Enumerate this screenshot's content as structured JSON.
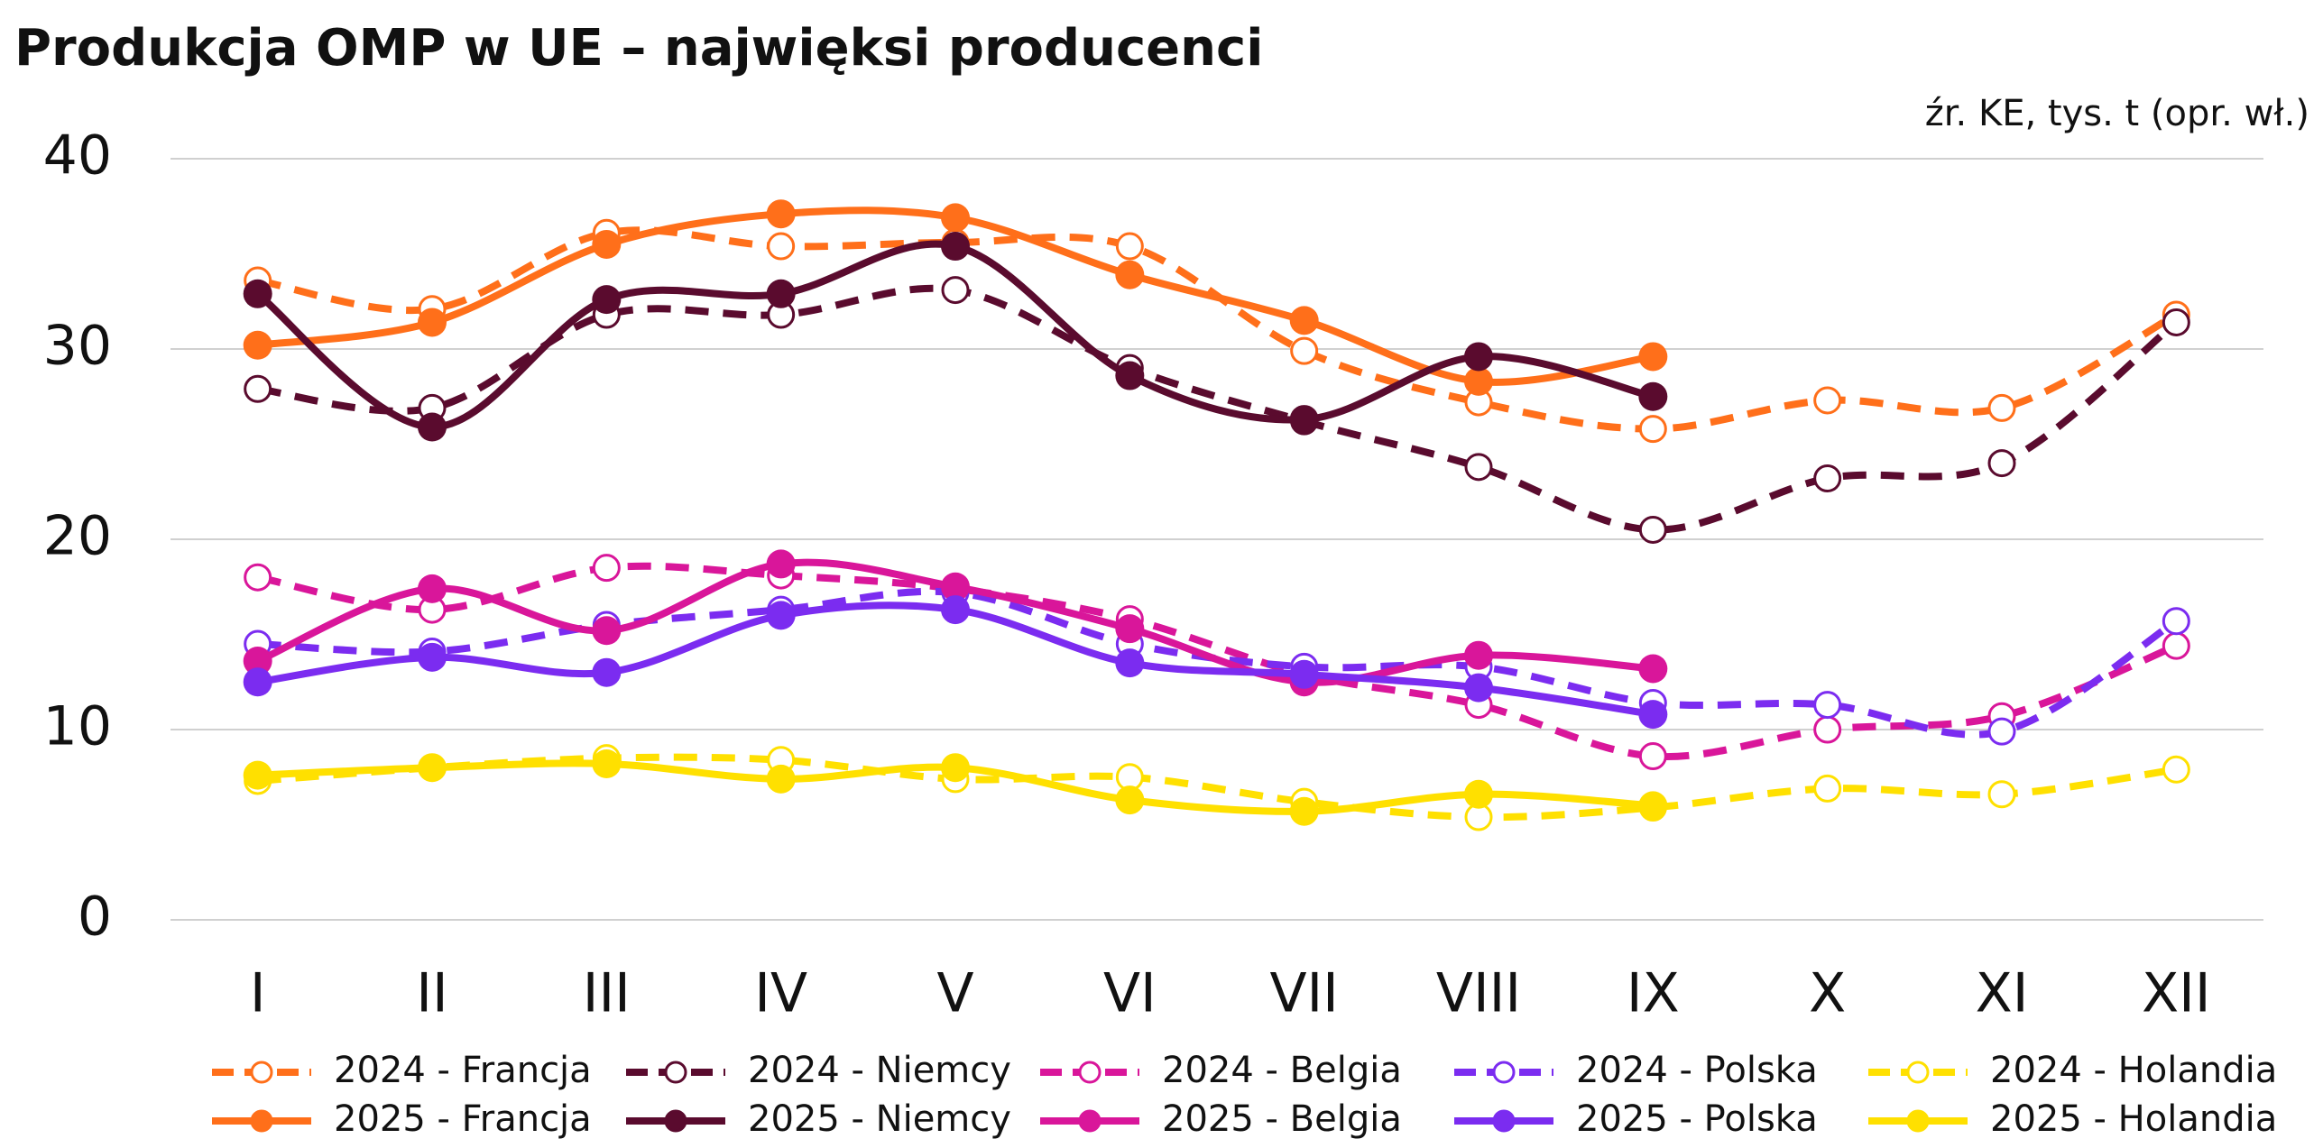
{
  "chart_data": {
    "type": "line",
    "title": "Produkcja OMP w UE – najwięksi producenci",
    "subtitle": "źr. KE, tys. t (opr. wł.)",
    "categories": [
      "I",
      "II",
      "III",
      "IV",
      "V",
      "VI",
      "VII",
      "VIII",
      "IX",
      "X",
      "XI",
      "XII"
    ],
    "ylim": [
      0,
      40
    ],
    "yticks": [
      0,
      10,
      20,
      30,
      40
    ],
    "grid": true,
    "legend": "bottom",
    "series": [
      {
        "name": "2024 - Francja",
        "color": "#ff6f1a",
        "line_style": "dashed",
        "marker": "hollow",
        "values": [
          33.6,
          32.1,
          36.1,
          35.4,
          35.6,
          35.4,
          29.9,
          27.2,
          25.8,
          27.3,
          26.9,
          31.8
        ]
      },
      {
        "name": "2024 - Niemcy",
        "color": "#5a0b2e",
        "line_style": "dashed",
        "marker": "hollow",
        "values": [
          27.9,
          26.9,
          31.8,
          31.8,
          33.1,
          29.0,
          26.2,
          23.8,
          20.5,
          23.2,
          24.0,
          31.4
        ]
      },
      {
        "name": "2024 - Belgia",
        "color": "#d9169a",
        "line_style": "dashed",
        "marker": "hollow",
        "values": [
          18.0,
          16.3,
          18.5,
          18.1,
          17.4,
          15.8,
          12.9,
          11.3,
          8.6,
          10.0,
          10.7,
          14.4
        ]
      },
      {
        "name": "2024 - Polska",
        "color": "#7b2cf0",
        "line_style": "dashed",
        "marker": "hollow",
        "values": [
          14.5,
          14.1,
          15.5,
          16.3,
          17.2,
          14.5,
          13.3,
          13.3,
          11.4,
          11.3,
          9.9,
          15.7
        ]
      },
      {
        "name": "2024 - Holandia",
        "color": "#ffe000",
        "line_style": "dashed",
        "marker": "hollow",
        "values": [
          7.3,
          8.0,
          8.5,
          8.4,
          7.4,
          7.5,
          6.2,
          5.4,
          5.9,
          6.9,
          6.6,
          7.9
        ]
      },
      {
        "name": "2025 - Francja",
        "color": "#ff6f1a",
        "line_style": "solid",
        "marker": "filled",
        "values": [
          30.2,
          31.4,
          35.5,
          37.1,
          36.9,
          33.9,
          31.5,
          28.3,
          29.6,
          null,
          null,
          null
        ]
      },
      {
        "name": "2025 - Niemcy",
        "color": "#5a0b2e",
        "line_style": "solid",
        "marker": "filled",
        "values": [
          32.9,
          25.9,
          32.6,
          32.9,
          35.4,
          28.6,
          26.3,
          29.6,
          27.5,
          null,
          null,
          null
        ]
      },
      {
        "name": "2025 - Belgia",
        "color": "#d9169a",
        "line_style": "solid",
        "marker": "filled",
        "values": [
          13.6,
          17.4,
          15.2,
          18.7,
          17.5,
          15.3,
          12.5,
          13.9,
          13.2,
          null,
          null,
          null
        ]
      },
      {
        "name": "2025 - Polska",
        "color": "#7b2cf0",
        "line_style": "solid",
        "marker": "filled",
        "values": [
          12.5,
          13.8,
          13.0,
          16.0,
          16.3,
          13.5,
          12.9,
          12.2,
          10.8,
          null,
          null,
          null
        ]
      },
      {
        "name": "2025 - Holandia",
        "color": "#ffe000",
        "line_style": "solid",
        "marker": "filled",
        "values": [
          7.6,
          8.0,
          8.2,
          7.4,
          8.0,
          6.3,
          5.7,
          6.6,
          6.0,
          null,
          null,
          null
        ]
      }
    ]
  }
}
